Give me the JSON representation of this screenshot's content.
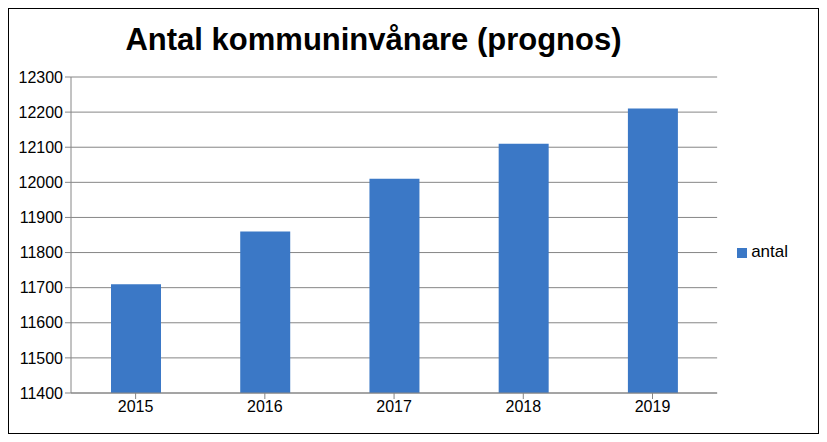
{
  "chart_data": {
    "type": "bar",
    "title": "Antal kommuninvånare (prognos)",
    "categories": [
      "2015",
      "2016",
      "2017",
      "2018",
      "2019"
    ],
    "series": [
      {
        "name": "antal",
        "color": "#3b78c6",
        "values": [
          11710,
          11860,
          12010,
          12110,
          12210
        ]
      }
    ],
    "ylim": [
      11400,
      12300
    ],
    "yticks": [
      11400,
      11500,
      11600,
      11700,
      11800,
      11900,
      12000,
      12100,
      12200,
      12300
    ],
    "grid": true,
    "legend": "right"
  }
}
